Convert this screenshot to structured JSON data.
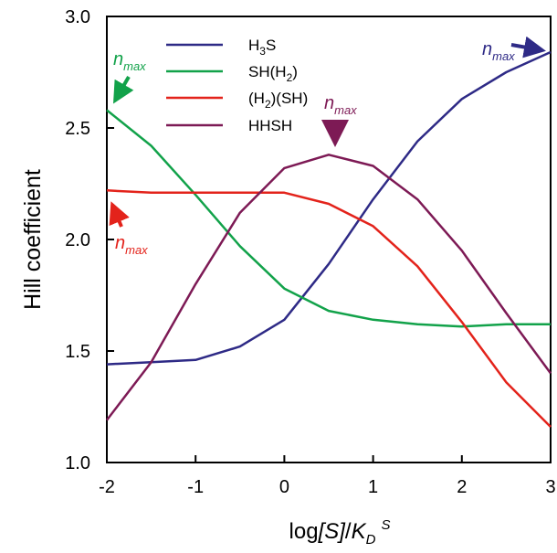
{
  "chart_data": {
    "type": "line",
    "title": "",
    "xlabel": "log[S]/K_D^S",
    "ylabel": "Hill coefficient",
    "xlim": [
      -2,
      3
    ],
    "ylim": [
      1.0,
      3.0
    ],
    "grid": false,
    "legend_position": "top-left",
    "x_ticks": [
      -2,
      -1,
      0,
      1,
      2,
      3
    ],
    "x_tick_labels": [
      "-2",
      "-1",
      "0",
      "1",
      "2",
      "3"
    ],
    "y_ticks": [
      1.0,
      1.5,
      2.0,
      2.5,
      3.0
    ],
    "y_tick_labels": [
      "1.0",
      "1.5",
      "2.0",
      "2.5",
      "3.0"
    ],
    "x": [
      -2,
      -1.5,
      -1,
      -0.5,
      0,
      0.5,
      1,
      1.5,
      2,
      2.5,
      3
    ],
    "series": [
      {
        "name": "H3S",
        "color": "#2e2a86",
        "values": [
          1.44,
          1.45,
          1.46,
          1.52,
          1.64,
          1.89,
          2.18,
          2.44,
          2.63,
          2.75,
          2.84
        ]
      },
      {
        "name": "SH(H2)",
        "color": "#12a24a",
        "values": [
          2.58,
          2.42,
          2.2,
          1.97,
          1.78,
          1.68,
          1.64,
          1.62,
          1.61,
          1.62,
          1.62
        ]
      },
      {
        "name": "(H2)(SH)",
        "color": "#e3231b",
        "values": [
          2.22,
          2.21,
          2.21,
          2.21,
          2.21,
          2.16,
          2.06,
          1.88,
          1.63,
          1.36,
          1.16
        ]
      },
      {
        "name": "HHSH",
        "color": "#7d1a55",
        "values": [
          1.19,
          1.45,
          1.8,
          2.12,
          2.32,
          2.38,
          2.33,
          2.18,
          1.95,
          1.67,
          1.4
        ]
      }
    ],
    "annotations": [
      {
        "text": "n",
        "subscript": "max",
        "series": "H3S",
        "color": "#2e2a86",
        "x": 3,
        "y": 2.84
      },
      {
        "text": "n",
        "subscript": "max",
        "series": "SH(H2)",
        "color": "#12a24a",
        "x": -2,
        "y": 2.58
      },
      {
        "text": "n",
        "subscript": "max",
        "series": "(H2)(SH)",
        "color": "#e3231b",
        "x": -2,
        "y": 2.22
      },
      {
        "text": "n",
        "subscript": "max",
        "series": "HHSH",
        "color": "#7d1a55",
        "x": 0.5,
        "y": 2.38
      }
    ]
  }
}
